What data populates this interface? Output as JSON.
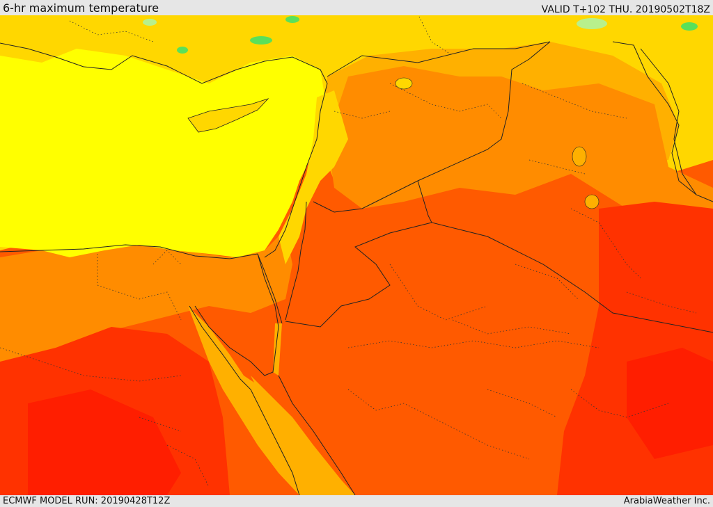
{
  "header": {
    "title": "6-hr maximum temperature",
    "valid": "VALID T+102 THU. 20190502T18Z"
  },
  "footer": {
    "model_run": "ECMWF MODEL RUN: 20190428T12Z",
    "provider": "ArabiaWeather Inc."
  },
  "palette": {
    "pale_green": "#b8f08c",
    "green": "#5ae05a",
    "yellow": "#ffff00",
    "gold": "#ffd700",
    "amber": "#ffb000",
    "orange": "#ff8c00",
    "dark_orange": "#ff5a00",
    "red_orange": "#ff3200",
    "red": "#ff1e00"
  }
}
